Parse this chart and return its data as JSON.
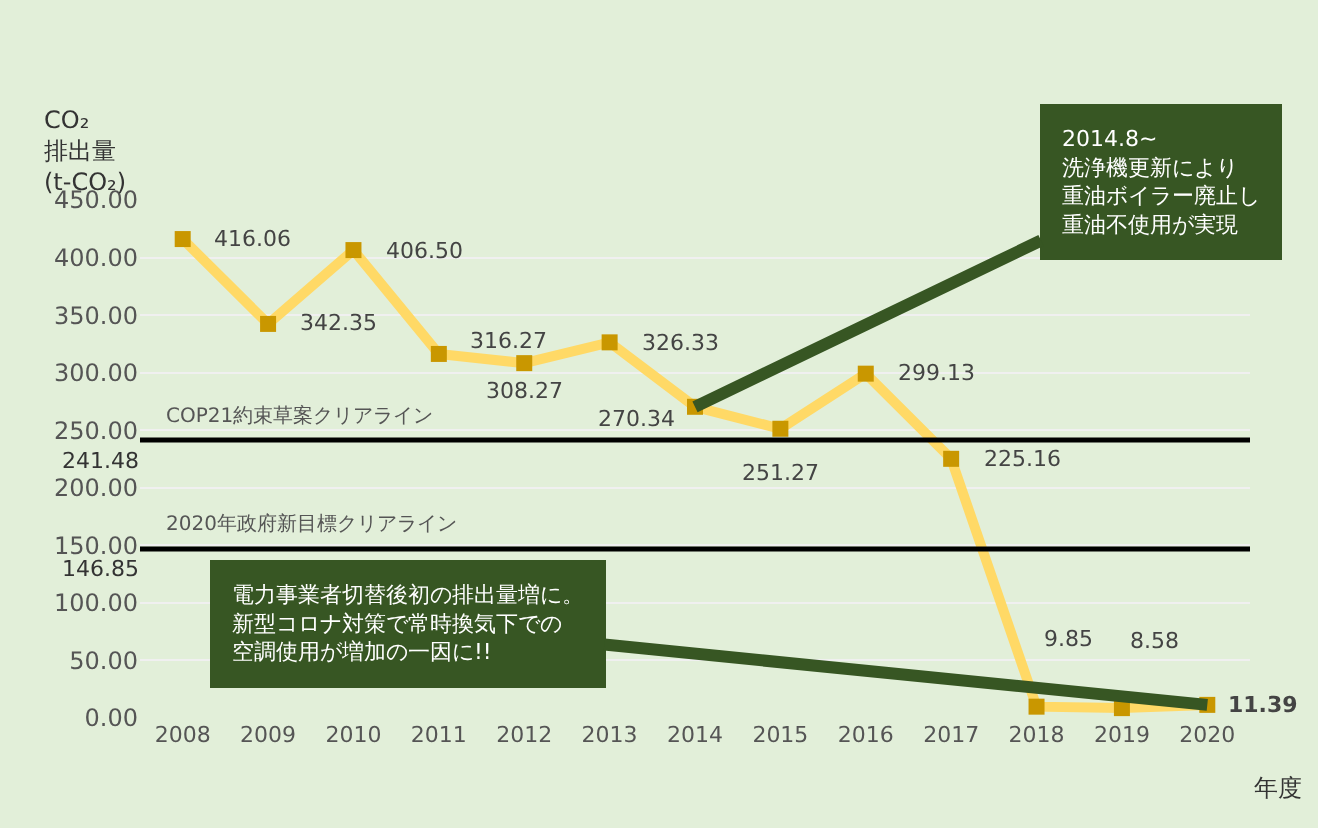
{
  "chart_data": {
    "type": "line",
    "ylabel": "CO₂\n排出量\n(t-CO₂)",
    "xlabel": "年度",
    "categories": [
      "2008",
      "2009",
      "2010",
      "2011",
      "2012",
      "2013",
      "2014",
      "2015",
      "2016",
      "2017",
      "2018",
      "2019",
      "2020"
    ],
    "series": [
      {
        "color": "#ffd966",
        "values": [
          416.06,
          342.35,
          406.5,
          316.27,
          308.27,
          326.33,
          270.34,
          251.27,
          299.13,
          225.16,
          9.85,
          8.58,
          11.39
        ],
        "value_labels": [
          "416.06",
          "342.35",
          "406.50",
          "316.27",
          "308.27",
          "326.33",
          "270.34",
          "251.27",
          "299.13",
          "225.16",
          "9.85",
          "8.58",
          "11.39"
        ]
      }
    ],
    "marker": "square",
    "line_style": "solid",
    "ylim": [
      0,
      450
    ],
    "yticks": [
      {
        "value": 0,
        "label": "0.00"
      },
      {
        "value": 50,
        "label": "50.00"
      },
      {
        "value": 100,
        "label": "100.00"
      },
      {
        "value": 150,
        "label": "150.00"
      },
      {
        "value": 200,
        "label": "200.00"
      },
      {
        "value": 250,
        "label": "250.00"
      },
      {
        "value": 300,
        "label": "300.00"
      },
      {
        "value": 350,
        "label": "350.00"
      },
      {
        "value": 400,
        "label": "400.00"
      },
      {
        "value": 450,
        "label": "450.00"
      }
    ],
    "grid": "y",
    "ref_lines": [
      {
        "axis": "y",
        "value": 241.48,
        "label": "COP21約束草案クリアライン",
        "color": "#000000"
      },
      {
        "axis": "y",
        "value": 146.85,
        "label": "2020年政府新目標クリアライン",
        "color": "#000000"
      }
    ],
    "annotations": [
      {
        "text": "2014.8~\n洗浄機更新により重油ボイラー廃止し重油不使用が実現",
        "x": "2014",
        "y": 270.34
      },
      {
        "text": "電力事業者切替後初の排出量増に。新型コロナ対策で常時換気下での空調使用が増加の一因に!!",
        "x": "2020",
        "y": 11.39
      },
      "241.48",
      "146.85"
    ]
  }
}
